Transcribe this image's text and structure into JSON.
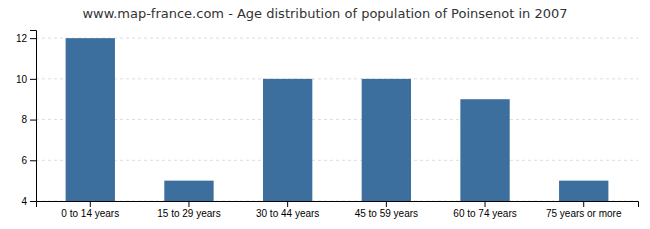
{
  "chart_data": {
    "type": "bar",
    "title": "www.map-france.com - Age distribution of population of Poinsenot in 2007",
    "categories": [
      "0 to 14 years",
      "15 to 29 years",
      "30 to 44 years",
      "45 to 59 years",
      "60 to 74 years",
      "75 years or more"
    ],
    "values": [
      12,
      5,
      10,
      10,
      9,
      5
    ],
    "color": "#3d6f9e",
    "ylim": [
      4,
      12.4
    ],
    "yticks": [
      4,
      6,
      8,
      10,
      12
    ],
    "grid": true
  }
}
